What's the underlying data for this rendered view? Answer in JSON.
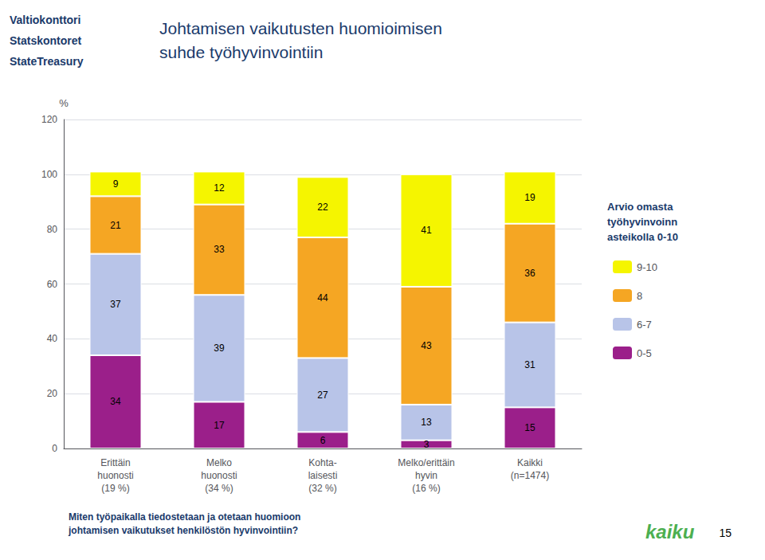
{
  "chart_data": {
    "type": "bar",
    "title": "Johtamisen vaikutusten huomioimisen\nsuhde työhyvinvointiin",
    "categories": [
      "Erittäin\nhuonosti\n(19 %)",
      "Melko\nhuonosti\n(34 %)",
      "Kohta-\nlaisesti\n(32 %)",
      "Melko/erittäin\nhyvin\n(16 %)",
      "Kaikki\n(n=1474)"
    ],
    "series": [
      {
        "name": "0-5",
        "color": "#9B1F8A",
        "values": [
          34,
          17,
          6,
          3,
          15
        ]
      },
      {
        "name": "6-7",
        "color": "#B8C4E8",
        "values": [
          37,
          39,
          27,
          13,
          31
        ]
      },
      {
        "name": "8",
        "color": "#F5A623",
        "values": [
          21,
          33,
          44,
          43,
          36
        ]
      },
      {
        "name": "9-10",
        "color": "#F5F500",
        "values": [
          9,
          12,
          22,
          41,
          19
        ]
      }
    ],
    "y_label": "%",
    "ylim": [
      0,
      120
    ],
    "yticks": [
      0,
      20,
      40,
      60,
      80,
      100,
      120
    ],
    "grid": true,
    "stacked": true,
    "data_labels": true,
    "legend_title": "Arvio omasta\ntyöhyvinvoinn\nasteikolla 0-10",
    "annotations": [
      "Valtiokonttori",
      "Statskontoret",
      "StateTreasury",
      "Miten työpaikalla tiedostetaan ja otetaan huomioon\njohtamisen vaikutukset henkilöstön hyvinvointiin?",
      "kaiku",
      "15"
    ]
  }
}
